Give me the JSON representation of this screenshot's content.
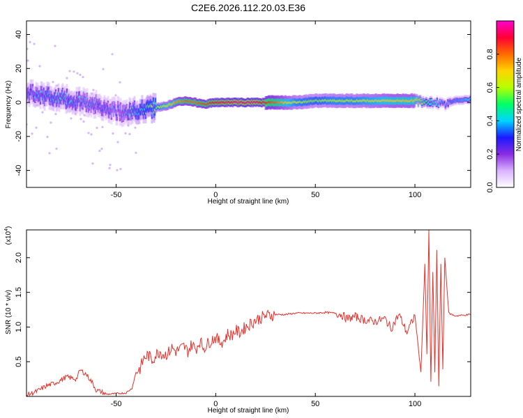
{
  "page_title": "C2E6.2026.112.20.03.E36",
  "colors": {
    "snr_line": "#e8302a",
    "axis": "#000000",
    "background": "#ffffff"
  },
  "chart_data": [
    {
      "type": "heatmap",
      "xlabel": "Height of straight line (km)",
      "ylabel": "Frequency (Hz)",
      "xlim": [
        -95,
        128
      ],
      "ylim": [
        -50,
        48
      ],
      "x_ticks": [
        -50,
        0,
        50,
        100
      ],
      "x_tick_labels": [
        "-50",
        "0",
        "50",
        "100"
      ],
      "y_ticks": [
        -40,
        -20,
        0,
        20,
        40
      ],
      "y_tick_labels": [
        "-40",
        "-20",
        "0",
        "20",
        "40"
      ],
      "ridge": {
        "description_units": "frequency (Hz) of spectral peak vs height (km)",
        "x": [
          -95,
          -85,
          -75,
          -65,
          -55,
          -50,
          -45,
          -40,
          -35,
          -30,
          -25,
          -20,
          -15,
          -10,
          -5,
          0,
          10,
          20,
          30,
          40,
          50,
          60,
          70,
          80,
          90,
          100,
          105,
          110,
          115,
          120,
          128
        ],
        "y": [
          5,
          4,
          2,
          0,
          -3,
          -5,
          -6,
          -5,
          -4,
          -3,
          -2,
          0,
          1,
          0,
          -1,
          0,
          0,
          0,
          0,
          0,
          1,
          1,
          1,
          1,
          1,
          1,
          1,
          0,
          -1,
          1,
          2
        ],
        "amplitude": [
          0.35,
          0.4,
          0.4,
          0.35,
          0.35,
          0.3,
          0.35,
          0.45,
          0.5,
          0.55,
          0.65,
          0.75,
          0.8,
          0.8,
          0.85,
          0.9,
          0.95,
          0.95,
          0.8,
          0.6,
          0.55,
          0.6,
          0.6,
          0.65,
          0.7,
          0.7,
          0.55,
          0.4,
          0.3,
          0.35,
          0.4
        ]
      },
      "grid": false,
      "legend": "colorbar-right"
    },
    {
      "type": "line",
      "xlabel": "Height of straight line (km)",
      "ylabel": "SNR (10 * v/v)",
      "y_multiplier_label": "(x10",
      "y_multiplier_exponent": "4",
      "xlim": [
        -95,
        128
      ],
      "ylim": [
        0,
        24000
      ],
      "x_ticks": [
        -50,
        0,
        50,
        100
      ],
      "x_tick_labels": [
        "-50",
        "0",
        "50",
        "100"
      ],
      "y_ticks": [
        5000,
        10000,
        15000,
        20000
      ],
      "y_tick_labels": [
        "0.5",
        "1.0",
        "1.5",
        "2.0"
      ],
      "series": [
        {
          "x": [
            -95,
            -90,
            -85,
            -80,
            -75,
            -70,
            -68,
            -65,
            -62,
            -60,
            -57,
            -55,
            -50,
            -45,
            -42,
            -40,
            -38,
            -36,
            -34,
            -32,
            -30,
            -28,
            -26,
            -24,
            -22,
            -20,
            -18,
            -16,
            -14,
            -12,
            -10,
            -8,
            -6,
            -4,
            -2,
            0,
            2,
            4,
            6,
            8,
            10,
            12,
            15,
            20,
            25,
            30,
            35,
            40,
            45,
            50,
            55,
            60,
            63,
            66,
            70,
            75,
            80,
            85,
            88,
            92,
            96,
            100,
            103,
            105,
            106,
            107,
            108,
            109,
            110,
            111,
            112,
            113,
            114,
            115,
            117,
            120,
            124,
            128
          ],
          "y": [
            200,
            700,
            1500,
            2000,
            2800,
            2500,
            3800,
            3200,
            2000,
            900,
            600,
            300,
            400,
            500,
            1200,
            3500,
            4000,
            5500,
            6000,
            5200,
            6000,
            6500,
            6000,
            6200,
            7000,
            6500,
            6800,
            7200,
            6500,
            7500,
            6800,
            8000,
            7000,
            7600,
            8200,
            8500,
            7800,
            8000,
            9000,
            8800,
            9500,
            9200,
            10000,
            11000,
            11600,
            11800,
            11800,
            12000,
            12000,
            12000,
            12100,
            12000,
            11800,
            11200,
            11500,
            11000,
            10800,
            11200,
            9800,
            11800,
            9200,
            11700,
            3500,
            19000,
            6000,
            24000,
            2000,
            18000,
            3500,
            21000,
            1500,
            19000,
            4000,
            20000,
            12000,
            11600,
            11700,
            11800
          ]
        }
      ],
      "grid": false,
      "legend": "none"
    }
  ],
  "colorbar": {
    "label": "Normalized spectral amplitude",
    "range": [
      0,
      1
    ],
    "ticks": [
      0,
      0.2,
      0.4,
      0.6,
      0.8
    ],
    "tick_labels": [
      "0.0",
      "0.2",
      "0.4",
      "0.6",
      "0.8"
    ],
    "colormap": [
      "#ffffff",
      "#d9b3ff",
      "#8a2be2",
      "#1a1aff",
      "#00d5ff",
      "#00ff66",
      "#b6ff00",
      "#ffd400",
      "#ff6a00",
      "#ff0033",
      "#ff00d0"
    ]
  }
}
